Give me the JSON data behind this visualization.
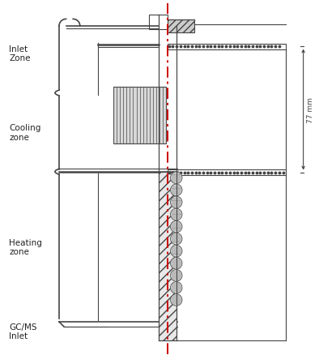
{
  "fig_width": 3.94,
  "fig_height": 4.39,
  "dpi": 100,
  "bg_color": "#ffffff",
  "lc": "#444444",
  "rc": "#cc0000",
  "labels": {
    "inlet_zone": "Inlet\nZone",
    "cooling_zone": "Cooling\nzone",
    "heating_zone": "Heating\nzone",
    "gcms_inlet": "GC/MS\nInlet",
    "dimension": "77 mm"
  }
}
